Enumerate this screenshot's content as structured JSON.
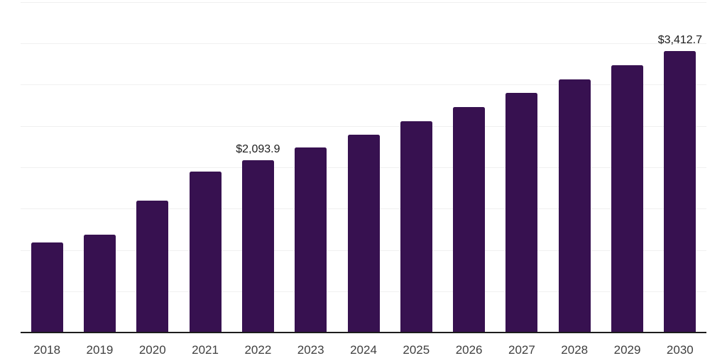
{
  "style": {
    "bar_color": "#371150",
    "grid_color": "#f0f0f0",
    "axis_color": "#1d1d1d",
    "tick_label_color": "#3f3f3f",
    "data_label_color": "#1c1c1c",
    "background": "#ffffff"
  },
  "chart_data": {
    "type": "bar",
    "title": "",
    "xlabel": "",
    "ylabel": "",
    "categories": [
      "2018",
      "2019",
      "2020",
      "2021",
      "2022",
      "2023",
      "2024",
      "2025",
      "2026",
      "2027",
      "2028",
      "2029",
      "2030"
    ],
    "values": [
      1095,
      1190,
      1600,
      1955,
      2093.9,
      2240,
      2395,
      2565,
      2730,
      2900,
      3070,
      3240,
      3412.7
    ],
    "data_labels": [
      {
        "category": "2022",
        "text": "$2,093.9"
      },
      {
        "category": "2030",
        "text": "$3,412.7"
      }
    ],
    "ylim": [
      0,
      4000
    ],
    "gridline_step": 500,
    "grid": "horizontal",
    "legend": "none",
    "y_axis_labels_visible": false
  }
}
